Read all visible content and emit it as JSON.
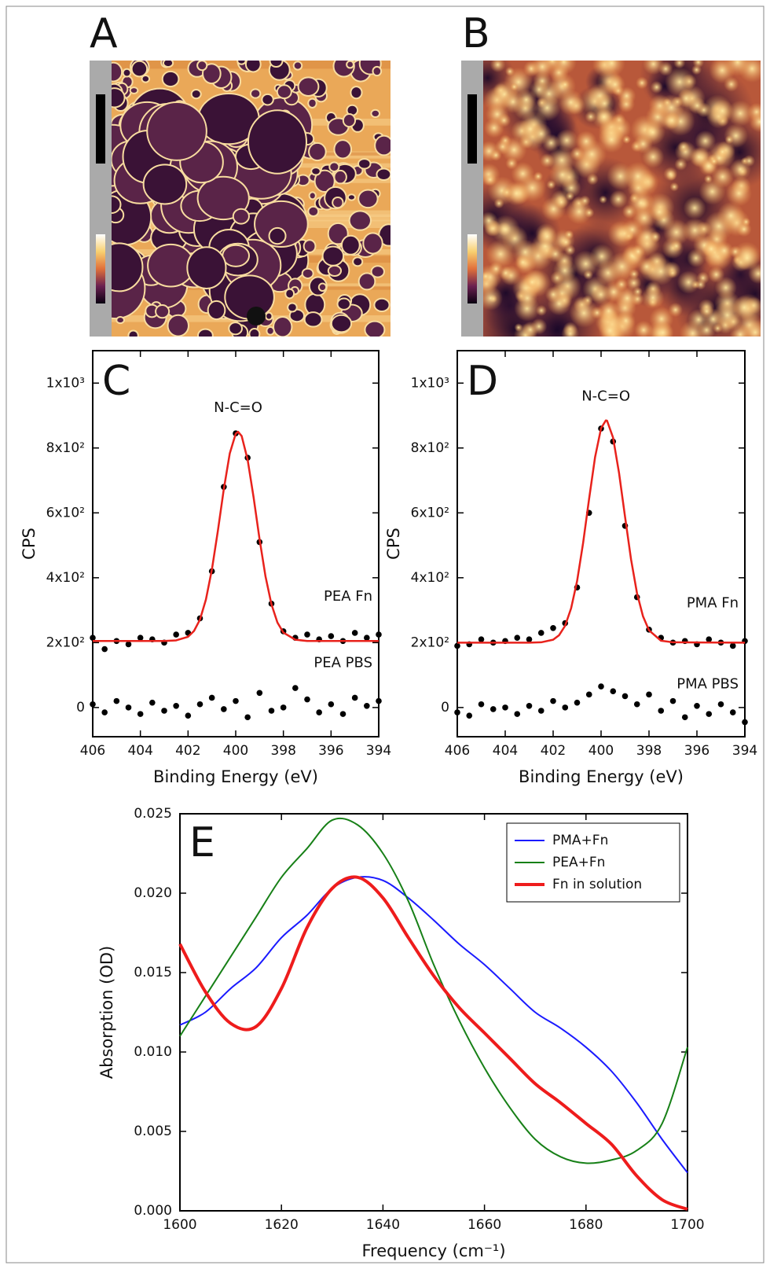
{
  "images": [
    {
      "label": "A"
    },
    {
      "label": "B"
    }
  ],
  "chart_data": [
    {
      "type": "scatter",
      "label": "C",
      "annotation": "N-C=O",
      "xlabel": "Binding Energy (eV)",
      "ylabel": "CPS",
      "xlim": [
        406,
        394
      ],
      "ylim": [
        -90,
        1100
      ],
      "xticks": [
        406,
        404,
        402,
        400,
        398,
        396,
        394
      ],
      "yticks": [
        0,
        {
          "value": 200,
          "label": "2x10²"
        },
        {
          "value": 400,
          "label": "4x10²"
        },
        {
          "value": 600,
          "label": "6x10²"
        },
        {
          "value": 800,
          "label": "8x10²"
        },
        {
          "value": 1000,
          "label": "1x10³"
        }
      ],
      "series": [
        {
          "name": "PEA Fn",
          "type": "scatter",
          "color": "#000000",
          "x": [
            406,
            405.5,
            405,
            404.5,
            404,
            403.5,
            403,
            402.5,
            402,
            401.5,
            401,
            400.5,
            400,
            399.5,
            399,
            398.5,
            398,
            397.5,
            397,
            396.5,
            396,
            395.5,
            395,
            394.5,
            394
          ],
          "values": [
            215,
            180,
            205,
            195,
            215,
            210,
            200,
            225,
            230,
            275,
            420,
            680,
            845,
            770,
            510,
            320,
            235,
            215,
            225,
            210,
            220,
            205,
            230,
            215,
            225
          ]
        },
        {
          "type": "line",
          "color": "#e8221c",
          "x": [
            406,
            403,
            402.5,
            402,
            401.75,
            401.5,
            401.25,
            401,
            400.75,
            400.5,
            400.25,
            400,
            399.9,
            399.75,
            399.5,
            399.25,
            399,
            398.75,
            398.5,
            398.25,
            398,
            397.5,
            397,
            394
          ],
          "values": [
            205,
            205,
            207,
            218,
            236,
            271,
            333,
            425,
            544,
            673,
            783,
            844,
            850,
            837,
            764,
            648,
            519,
            404,
            318,
            262,
            231,
            209,
            205,
            205
          ]
        },
        {
          "name": "PEA PBS",
          "type": "scatter",
          "color": "#000000",
          "x": [
            406,
            405.5,
            405,
            404.5,
            404,
            403.5,
            403,
            402.5,
            402,
            401.5,
            401,
            400.5,
            400,
            399.5,
            399,
            398.5,
            398,
            397.5,
            397,
            396.5,
            396,
            395.5,
            395,
            394.5,
            394
          ],
          "values": [
            10,
            -15,
            20,
            0,
            -20,
            15,
            -10,
            5,
            -25,
            10,
            30,
            -5,
            20,
            -30,
            45,
            -10,
            0,
            60,
            25,
            -15,
            10,
            -20,
            30,
            5,
            20
          ]
        }
      ]
    },
    {
      "type": "scatter",
      "label": "D",
      "annotation": "N-C=O",
      "xlabel": "Binding Energy (eV)",
      "ylabel": "CPS",
      "xlim": [
        406,
        394
      ],
      "ylim": [
        -90,
        1100
      ],
      "xticks": [
        406,
        404,
        402,
        400,
        398,
        396,
        394
      ],
      "yticks": [
        0,
        {
          "value": 200,
          "label": "2x10²"
        },
        {
          "value": 400,
          "label": "4x10²"
        },
        {
          "value": 600,
          "label": "6x10²"
        },
        {
          "value": 800,
          "label": "8x10²"
        },
        {
          "value": 1000,
          "label": "1x10³"
        }
      ],
      "series": [
        {
          "name": "PMA Fn",
          "type": "scatter",
          "color": "#000000",
          "x": [
            406,
            405.5,
            405,
            404.5,
            404,
            403.5,
            403,
            402.5,
            402,
            401.5,
            401,
            400.5,
            400,
            399.5,
            399,
            398.5,
            398,
            397.5,
            397,
            396.5,
            396,
            395.5,
            395,
            394.5,
            394
          ],
          "values": [
            190,
            195,
            210,
            200,
            205,
            215,
            210,
            230,
            245,
            260,
            370,
            600,
            860,
            820,
            560,
            340,
            240,
            215,
            200,
            205,
            195,
            210,
            200,
            190,
            205
          ]
        },
        {
          "type": "line",
          "color": "#e8221c",
          "x": [
            406,
            403,
            402.5,
            402,
            401.75,
            401.5,
            401.25,
            401,
            400.75,
            400.5,
            400.25,
            400,
            399.8,
            399.75,
            399.5,
            399.25,
            399,
            398.75,
            398.5,
            398.25,
            398,
            397.5,
            397,
            394
          ],
          "values": [
            200,
            200,
            201,
            209,
            223,
            252,
            306,
            390,
            507,
            643,
            772,
            861,
            885,
            884,
            832,
            723,
            588,
            457,
            352,
            281,
            238,
            206,
            201,
            200
          ]
        },
        {
          "name": "PMA PBS",
          "type": "scatter",
          "color": "#000000",
          "x": [
            406,
            405.5,
            405,
            404.5,
            404,
            403.5,
            403,
            402.5,
            402,
            401.5,
            401,
            400.5,
            400,
            399.5,
            399,
            398.5,
            398,
            397.5,
            397,
            396.5,
            396,
            395.5,
            395,
            394.5,
            394
          ],
          "values": [
            -15,
            -25,
            10,
            -5,
            0,
            -20,
            5,
            -10,
            20,
            0,
            15,
            40,
            65,
            50,
            35,
            10,
            40,
            -10,
            20,
            -30,
            5,
            -20,
            10,
            -15,
            -45
          ]
        }
      ]
    },
    {
      "type": "line",
      "label": "E",
      "xlabel": "Frequency (cm⁻¹)",
      "ylabel": "Absorption (OD)",
      "xlim": [
        1600,
        1700
      ],
      "ylim": [
        0,
        0.025
      ],
      "xticks": [
        1600,
        1620,
        1640,
        1660,
        1680,
        1700
      ],
      "yticks": [
        {
          "value": 0,
          "label": "0.000"
        },
        {
          "value": 0.005,
          "label": "0.005"
        },
        {
          "value": 0.01,
          "label": "0.010"
        },
        {
          "value": 0.015,
          "label": "0.015"
        },
        {
          "value": 0.02,
          "label": "0.020"
        },
        {
          "value": 0.025,
          "label": "0.025"
        }
      ],
      "legend": "upper right",
      "x": [
        1600,
        1605,
        1610,
        1615,
        1620,
        1625,
        1630,
        1635,
        1640,
        1645,
        1650,
        1655,
        1660,
        1665,
        1670,
        1675,
        1680,
        1685,
        1690,
        1695,
        1700
      ],
      "series": [
        {
          "name": "PMA+Fn",
          "color": "#1a1aff",
          "line_width": 2,
          "values": [
            0.0117,
            0.0125,
            0.014,
            0.0153,
            0.0172,
            0.0186,
            0.0203,
            0.021,
            0.0208,
            0.0197,
            0.0183,
            0.0168,
            0.0155,
            0.014,
            0.0125,
            0.0115,
            0.0103,
            0.0088,
            0.0068,
            0.0045,
            0.0024
          ]
        },
        {
          "name": "PEA+Fn",
          "color": "#178017",
          "line_width": 2,
          "values": [
            0.011,
            0.0135,
            0.016,
            0.0185,
            0.021,
            0.0228,
            0.0246,
            0.0243,
            0.0225,
            0.0195,
            0.0155,
            0.012,
            0.009,
            0.0065,
            0.0045,
            0.0034,
            0.003,
            0.0032,
            0.0038,
            0.0055,
            0.0103
          ]
        },
        {
          "name": "Fn in solution",
          "color": "#ee1c1c",
          "line_width": 4,
          "values": [
            0.0168,
            0.0138,
            0.0118,
            0.0116,
            0.014,
            0.0178,
            0.0203,
            0.021,
            0.0197,
            0.0172,
            0.0148,
            0.0128,
            0.0112,
            0.0096,
            0.008,
            0.0068,
            0.0055,
            0.0042,
            0.0022,
            0.0007,
            0.0001
          ]
        }
      ]
    }
  ]
}
